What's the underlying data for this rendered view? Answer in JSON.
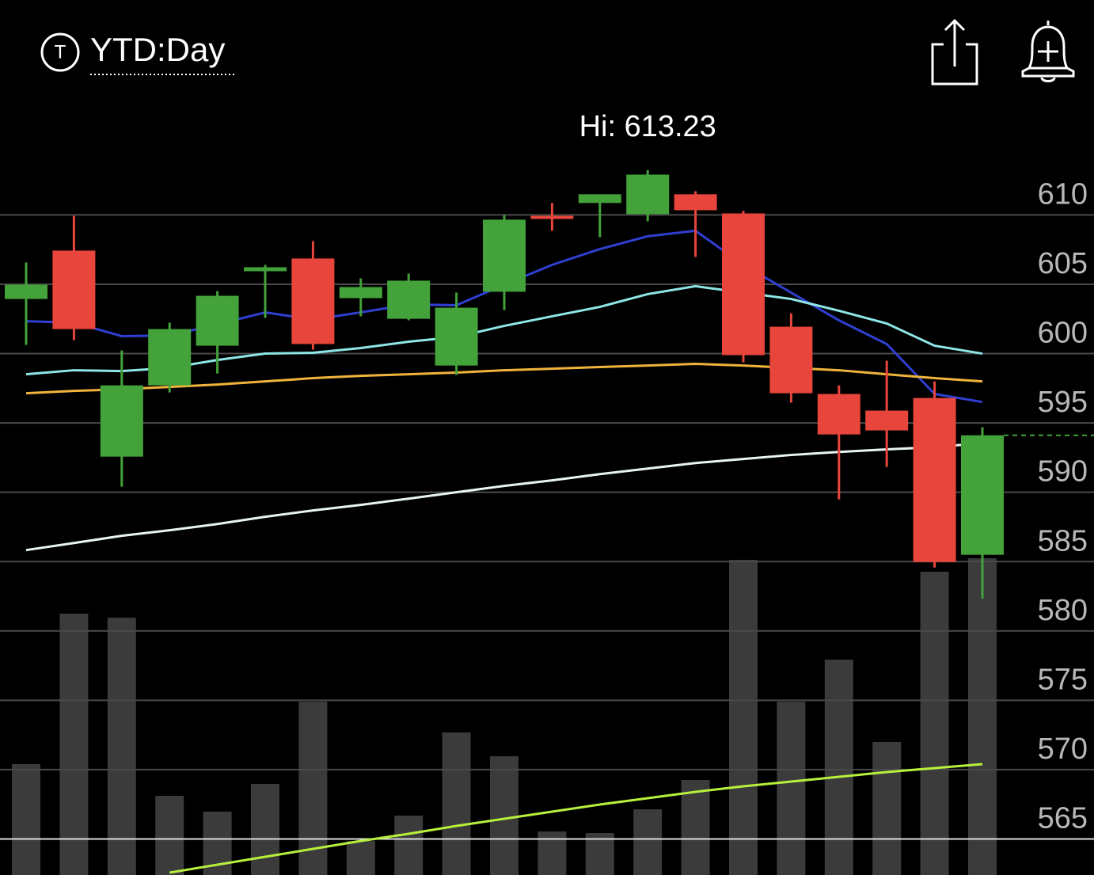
{
  "header": {
    "icon_letter": "T",
    "period": "YTD:Day"
  },
  "chart_data": {
    "type": "candlestick",
    "annotation": "Hi: 613.23",
    "ylim": [
      562.4,
      625.5
    ],
    "yticks": [
      565,
      570,
      575,
      580,
      585,
      590,
      595,
      600,
      605,
      610
    ],
    "grid": true,
    "up_color": "#43a23a",
    "down_color": "#e8453c",
    "open": [
      603.94,
      607.43,
      592.57,
      597.71,
      600.57,
      605.94,
      606.86,
      604.0,
      602.51,
      599.14,
      604.46,
      609.94,
      610.86,
      610.06,
      611.49,
      610.11,
      601.94,
      597.09,
      595.89,
      596.8,
      585.49
    ],
    "close": [
      604.97,
      601.77,
      597.71,
      601.77,
      604.17,
      606.23,
      600.69,
      604.8,
      605.26,
      603.31,
      609.66,
      609.71,
      611.49,
      612.91,
      610.34,
      599.89,
      597.14,
      594.17,
      594.46,
      584.97,
      594.11
    ],
    "high": [
      606.57,
      609.94,
      600.23,
      602.23,
      604.51,
      606.4,
      608.11,
      605.43,
      605.77,
      604.4,
      610.0,
      610.86,
      611.49,
      613.23,
      611.71,
      610.29,
      602.91,
      597.71,
      599.49,
      598.0,
      594.69
    ],
    "low": [
      600.63,
      600.97,
      590.4,
      597.2,
      598.57,
      602.57,
      600.29,
      602.69,
      602.4,
      598.46,
      603.14,
      608.86,
      608.4,
      609.54,
      606.97,
      599.37,
      596.46,
      589.49,
      591.83,
      584.57,
      582.34
    ],
    "overlays": [
      {
        "color": "#2f3fd0",
        "values": [
          602.34,
          602.23,
          601.26,
          601.31,
          602.11,
          602.97,
          602.46,
          602.97,
          603.54,
          603.49,
          604.97,
          606.4,
          607.54,
          608.46,
          608.86,
          606.4,
          604.4,
          602.4,
          600.69,
          597.09,
          596.51
        ]
      },
      {
        "color": "#8fe6e6",
        "values": [
          598.51,
          598.8,
          598.74,
          598.97,
          599.54,
          600.0,
          600.06,
          600.4,
          600.86,
          601.2,
          602.0,
          602.69,
          603.37,
          604.29,
          604.86,
          604.4,
          603.94,
          603.09,
          602.17,
          600.57,
          600.0
        ]
      },
      {
        "color": "#f0b43c",
        "values": [
          597.14,
          597.31,
          597.43,
          597.6,
          597.77,
          598.0,
          598.23,
          598.4,
          598.51,
          598.63,
          598.8,
          598.91,
          599.03,
          599.14,
          599.26,
          599.14,
          598.97,
          598.8,
          598.51,
          598.23,
          598.0
        ]
      },
      {
        "color": "#e8f4f4",
        "values": [
          585.83,
          586.34,
          586.86,
          587.26,
          587.71,
          588.23,
          588.69,
          589.09,
          589.54,
          590.0,
          590.46,
          590.86,
          591.31,
          591.71,
          592.11,
          592.4,
          592.69,
          592.91,
          593.09,
          593.26,
          593.54
        ]
      }
    ],
    "volume_color": "#3b3b3b",
    "volume_ylim": [
      0,
      110.5
    ],
    "volume": [
      14,
      33,
      32.5,
      10,
      8,
      11.5,
      21.9,
      4.3,
      7.5,
      18,
      15,
      5.5,
      5.3,
      8.3,
      12,
      39.8,
      21.9,
      27.2,
      16.8,
      38.3,
      40
    ],
    "volume_average": {
      "color": "#b6f03c",
      "values": [
        null,
        null,
        null,
        0.3,
        1.3,
        2.3,
        3.3,
        4.3,
        5.2,
        6.2,
        7.1,
        8.0,
        8.9,
        9.7,
        10.5,
        11.2,
        11.8,
        12.4,
        13.0,
        13.5,
        14.0
      ]
    }
  }
}
